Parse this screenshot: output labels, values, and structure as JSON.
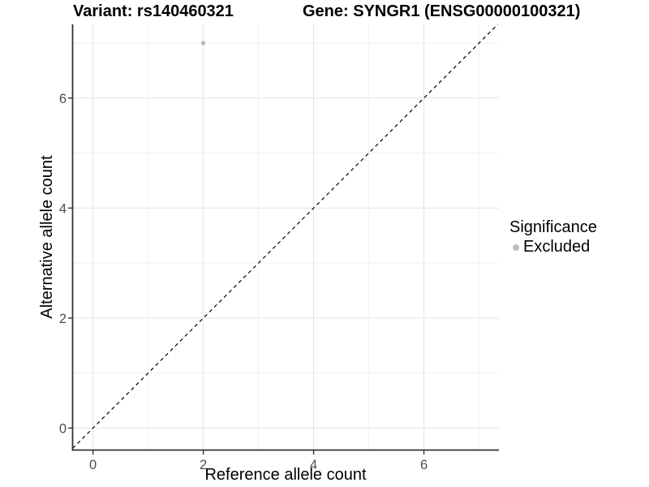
{
  "titles": {
    "variant": "Variant: rs140460321",
    "gene": "Gene: SYNGR1 (ENSG00000100321)"
  },
  "axes": {
    "x_label": "Reference allele count",
    "y_label": "Alternative allele count"
  },
  "legend": {
    "title": "Significance",
    "items": [
      {
        "label": "Excluded",
        "color": "#bdbdbd",
        "marker": "circle-icon"
      }
    ]
  },
  "chart_data": {
    "type": "scatter",
    "title": "Variant: rs140460321 / Gene: SYNGR1 (ENSG00000100321)",
    "xlabel": "Reference allele count",
    "ylabel": "Alternative allele count",
    "xlim": [
      -0.37,
      7.36
    ],
    "ylim": [
      -0.4,
      7.34
    ],
    "x_ticks": [
      0,
      2,
      4,
      6
    ],
    "y_ticks": [
      0,
      2,
      4,
      6
    ],
    "x_minor_ticks": [
      1,
      3,
      5,
      7
    ],
    "y_minor_ticks": [
      1,
      3,
      5,
      7
    ],
    "grid": true,
    "legend_position": "right",
    "series": [
      {
        "name": "Excluded",
        "color": "#bdbdbd",
        "points": [
          {
            "x": 2,
            "y": 7
          }
        ]
      }
    ],
    "reference_line": {
      "kind": "y = x",
      "style": "dashed",
      "color": "#000000"
    }
  },
  "colors": {
    "background": "#ffffff",
    "grid_major": "#e4e4e4",
    "grid_minor": "#f1f1f1",
    "axis_line": "#333333",
    "tick_text": "#4d4d4d",
    "title_text": "#000000"
  }
}
